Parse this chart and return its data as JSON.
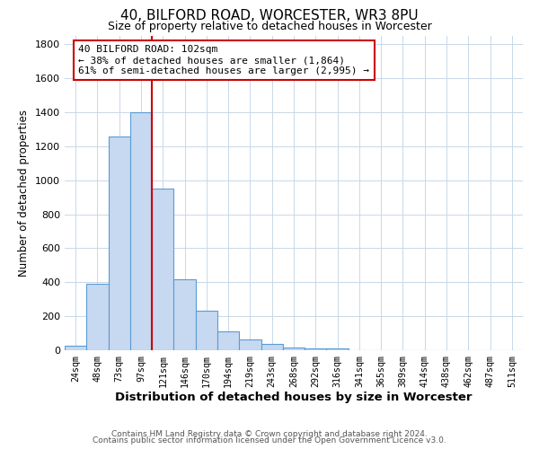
{
  "title": "40, BILFORD ROAD, WORCESTER, WR3 8PU",
  "subtitle": "Size of property relative to detached houses in Worcester",
  "xlabel": "Distribution of detached houses by size in Worcester",
  "ylabel": "Number of detached properties",
  "bin_labels": [
    "24sqm",
    "48sqm",
    "73sqm",
    "97sqm",
    "121sqm",
    "146sqm",
    "170sqm",
    "194sqm",
    "219sqm",
    "243sqm",
    "268sqm",
    "292sqm",
    "316sqm",
    "341sqm",
    "365sqm",
    "389sqm",
    "414sqm",
    "438sqm",
    "462sqm",
    "487sqm",
    "511sqm"
  ],
  "bar_values": [
    25,
    390,
    1260,
    1400,
    950,
    420,
    235,
    110,
    65,
    35,
    15,
    8,
    8,
    2,
    0,
    0,
    0,
    0,
    0,
    0,
    0
  ],
  "bar_color": "#c6d9f0",
  "bar_edgecolor": "#5b9bd5",
  "property_line_x": 3.5,
  "property_line_color": "#cc0000",
  "annotation_text": "40 BILFORD ROAD: 102sqm\n← 38% of detached houses are smaller (1,864)\n61% of semi-detached houses are larger (2,995) →",
  "annotation_box_edgecolor": "#cc0000",
  "ylim": [
    0,
    1850
  ],
  "yticks": [
    0,
    200,
    400,
    600,
    800,
    1000,
    1200,
    1400,
    1600,
    1800
  ],
  "footer_line1": "Contains HM Land Registry data © Crown copyright and database right 2024.",
  "footer_line2": "Contains public sector information licensed under the Open Government Licence v3.0.",
  "background_color": "#ffffff",
  "grid_color": "#c8d8e8"
}
